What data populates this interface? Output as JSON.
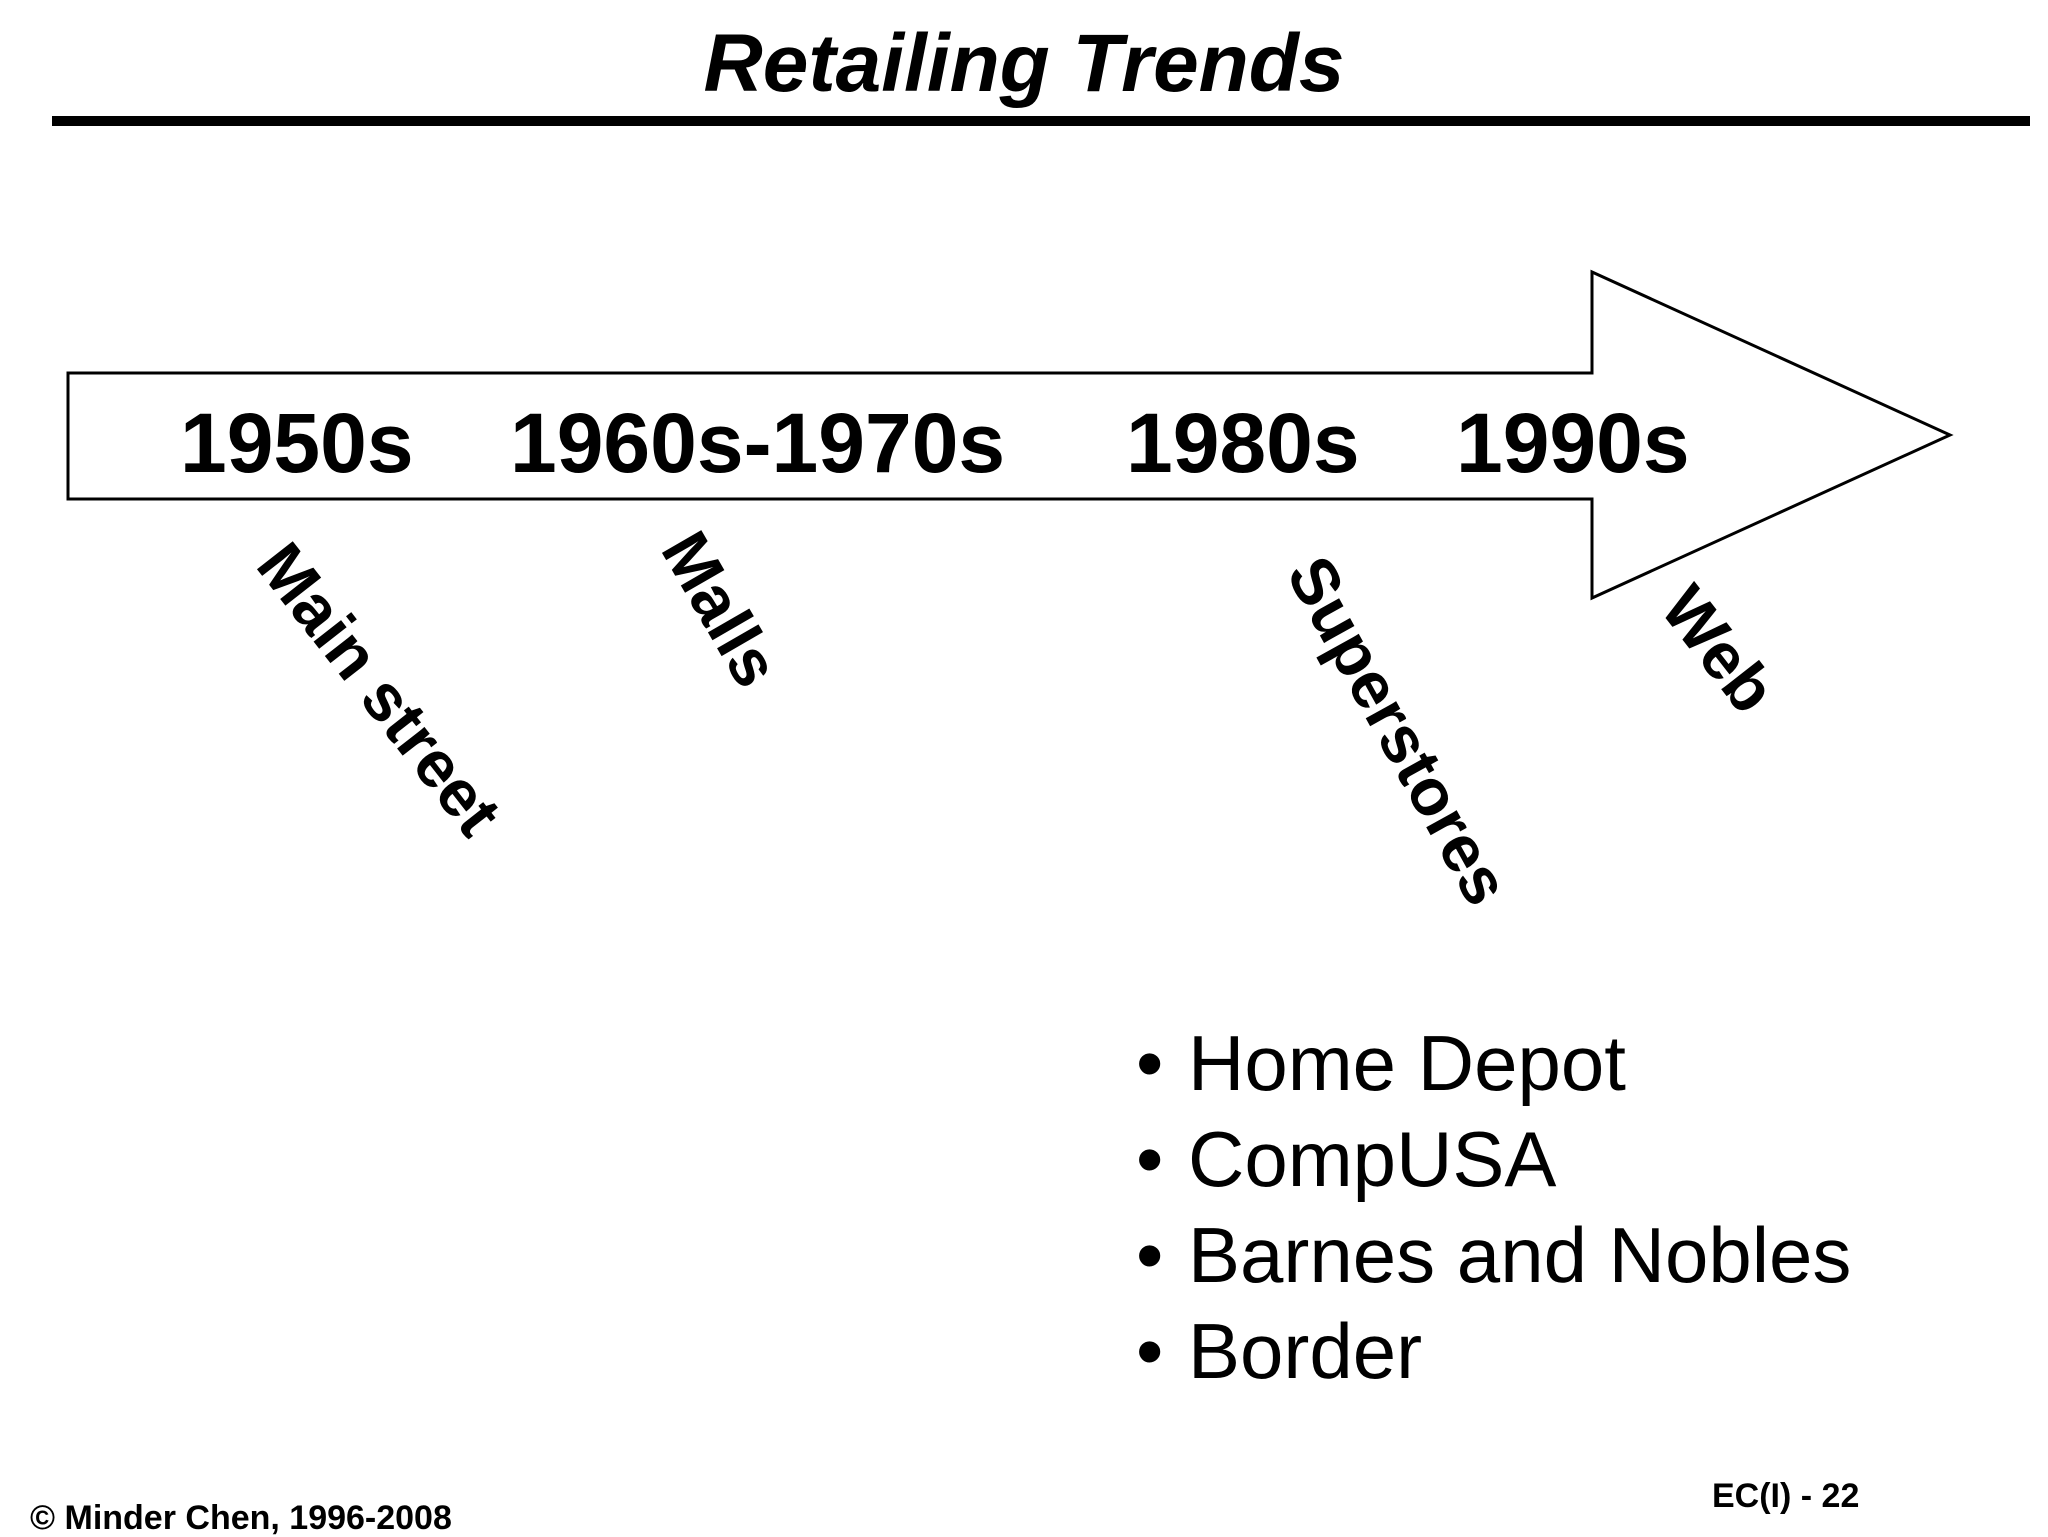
{
  "title": "Retailing Trends",
  "eras": [
    "1950s",
    "1960s-1970s",
    "1980s",
    "1990s"
  ],
  "trends": [
    "Main street",
    "Malls",
    "Superstores",
    "Web"
  ],
  "superstore_examples": [
    "Home Depot",
    "CompUSA",
    "Barnes and Nobles",
    "Border"
  ],
  "footer": {
    "copyright": "© Minder Chen, 1996-2008",
    "page": "EC(I) - 22"
  },
  "colors": {
    "text": "#000000",
    "background": "#ffffff",
    "arrow_fill": "#ffffff",
    "arrow_stroke": "#000000"
  }
}
